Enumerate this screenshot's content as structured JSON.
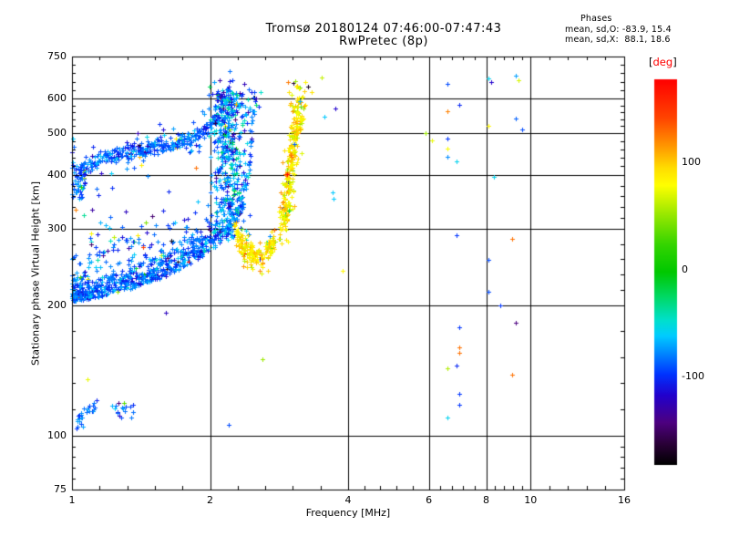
{
  "title": {
    "line1": "Tromsø 20180124 07:46:00-07:47:43",
    "line2": "RwPretec (8p)"
  },
  "annotation": {
    "header": "Phases",
    "line_o": "mean, sd,O: -83.9, 15.4",
    "line_x": "mean, sd,X:  88.1, 18.6"
  },
  "chart_data": {
    "type": "scatter",
    "title": "Tromsø 20180124 07:46:00-07:47:43",
    "subtitle": "RwPretec (8p)",
    "xlabel": "Frequency [MHz]",
    "ylabel": "Stationary phase Virtual Height [km]",
    "x_scale": "log",
    "y_scale": "log",
    "xlim": [
      1,
      16
    ],
    "ylim": [
      75,
      750
    ],
    "x_ticks": [
      1,
      2,
      4,
      6,
      8,
      10,
      16
    ],
    "y_ticks": [
      75,
      100,
      200,
      300,
      400,
      500,
      600,
      750
    ],
    "x_gridlines": [
      2,
      4,
      6,
      8,
      10
    ],
    "y_gridlines": [
      100,
      200,
      300,
      400,
      500,
      600
    ],
    "minor_ticks_per_interval": 4,
    "frame_color": "#000000",
    "phase_stats": {
      "O": {
        "mean": -83.9,
        "sd": 15.4
      },
      "X": {
        "mean": 88.1,
        "sd": 18.6
      }
    },
    "colorbar": {
      "bracket_l": "[",
      "unit": "deg",
      "bracket_r": "]",
      "unit_color": "#ff0000",
      "range": [
        -180,
        180
      ],
      "ticks": [
        100,
        0,
        -100
      ],
      "stops": [
        [
          0.0,
          "#ff0000"
        ],
        [
          0.1,
          "#ff4400"
        ],
        [
          0.175,
          "#ff9900"
        ],
        [
          0.23,
          "#ffdd00"
        ],
        [
          0.275,
          "#ffff00"
        ],
        [
          0.35,
          "#99e800"
        ],
        [
          0.43,
          "#33d400"
        ],
        [
          0.5,
          "#00c800"
        ],
        [
          0.565,
          "#00d966"
        ],
        [
          0.625,
          "#00e0cc"
        ],
        [
          0.665,
          "#00ccff"
        ],
        [
          0.71,
          "#0088ff"
        ],
        [
          0.765,
          "#0033ff"
        ],
        [
          0.82,
          "#2200cc"
        ],
        [
          0.89,
          "#4d0080"
        ],
        [
          0.945,
          "#2a0038"
        ],
        [
          1.0,
          "#000000"
        ]
      ]
    },
    "traces": [
      {
        "name": "o-lower-cloud",
        "kind": "cloud",
        "anchors": [
          [
            1.0,
            204
          ],
          [
            1.1,
            207
          ],
          [
            1.2,
            211
          ],
          [
            1.3,
            216
          ],
          [
            1.4,
            221
          ],
          [
            1.5,
            227
          ],
          [
            1.6,
            233
          ],
          [
            1.7,
            240
          ],
          [
            1.8,
            248
          ],
          [
            1.9,
            257
          ],
          [
            2.0,
            267
          ],
          [
            2.1,
            278
          ],
          [
            2.2,
            292
          ],
          [
            2.3,
            312
          ],
          [
            2.36,
            335
          ],
          [
            2.41,
            370
          ],
          [
            2.44,
            415
          ],
          [
            2.46,
            460
          ],
          [
            2.48,
            510
          ],
          [
            2.5,
            550
          ]
        ],
        "n": 820,
        "spread": 22,
        "bias": 1.25,
        "halo_frac": 0.13,
        "halo": 55,
        "phase_mean": -84,
        "phase_sd": 15,
        "outlier_frac": 0.03
      },
      {
        "name": "o-upper-arc",
        "kind": "curve",
        "anchors": [
          [
            1.0,
            400
          ],
          [
            1.05,
            415
          ],
          [
            1.1,
            428
          ],
          [
            1.2,
            440
          ],
          [
            1.3,
            450
          ],
          [
            1.45,
            460
          ],
          [
            1.6,
            470
          ],
          [
            1.75,
            482
          ],
          [
            1.9,
            498
          ],
          [
            2.0,
            515
          ],
          [
            2.07,
            540
          ],
          [
            2.12,
            570
          ],
          [
            2.17,
            605
          ],
          [
            2.22,
            640
          ]
        ],
        "n": 400,
        "spread": 11,
        "bias": 0.95,
        "halo_frac": 0.1,
        "halo": 30,
        "phase_mean": -84,
        "phase_sd": 15,
        "outlier_frac": 0.04
      },
      {
        "name": "left-edge-blob",
        "kind": "blob",
        "f_min": 1.0,
        "f_max": 1.07,
        "h_min": 352,
        "h_max": 420,
        "n": 40,
        "phase_mean": -80,
        "phase_sd": 18,
        "outlier_frac": 0.05
      },
      {
        "name": "mid-scatter",
        "kind": "band",
        "f_min": 1.05,
        "f_max": 2.0,
        "h_center": 300,
        "h_sd": 45,
        "h_min": 255,
        "h_max": 430,
        "n": 48,
        "phase_mean": -88,
        "phase_sd": 28,
        "outlier_frac": 0.08
      },
      {
        "name": "f-blue-column",
        "kind": "column",
        "f_center": 2.2,
        "f_sd": 0.1,
        "f_min": 2.0,
        "f_max": 2.46,
        "h_min": 282,
        "h_max": 618,
        "h_bias": 0.92,
        "n": 430,
        "phase_mean": -75,
        "phase_sd": 27,
        "outlier_frac": 0.05
      },
      {
        "name": "top-scatter",
        "kind": "blob",
        "f_min": 1.95,
        "f_max": 2.62,
        "h_min": 562,
        "h_max": 662,
        "n": 32,
        "phase_mean": -92,
        "phase_sd": 34,
        "outlier_frac": 0.12
      },
      {
        "name": "x-cusp",
        "kind": "curve",
        "anchors": [
          [
            2.26,
            298
          ],
          [
            2.32,
            280
          ],
          [
            2.4,
            268
          ],
          [
            2.5,
            260
          ],
          [
            2.6,
            262
          ],
          [
            2.7,
            270
          ],
          [
            2.78,
            283
          ]
        ],
        "n": 175,
        "spread": 9,
        "bias": 1.0,
        "halo_frac": 0.07,
        "halo": 22,
        "phase_mean": 92,
        "phase_sd": 14,
        "outlier_frac": 0.07
      },
      {
        "name": "x-column",
        "kind": "curve",
        "anchors": [
          [
            2.86,
            300
          ],
          [
            2.9,
            325
          ],
          [
            2.94,
            355
          ],
          [
            2.98,
            395
          ],
          [
            3.02,
            440
          ],
          [
            3.06,
            490
          ],
          [
            3.1,
            535
          ],
          [
            3.14,
            572
          ]
        ],
        "n": 270,
        "spread": 17,
        "bias": 1.0,
        "halo_frac": 0.06,
        "halo": 35,
        "f_jitter": 0.04,
        "phase_mean": 88,
        "phase_sd": 17,
        "outlier_frac": 0.06
      },
      {
        "name": "x-upper-sparse",
        "kind": "blob",
        "f_min": 2.95,
        "f_max": 3.35,
        "h_min": 555,
        "h_max": 660,
        "n": 26,
        "phase_mean": 85,
        "phase_sd": 25,
        "outlier_frac": 0.1
      },
      {
        "name": "es-streak",
        "kind": "curve",
        "anchors": [
          [
            1.02,
            107
          ],
          [
            1.05,
            110
          ],
          [
            1.09,
            114
          ],
          [
            1.13,
            119
          ]
        ],
        "n": 30,
        "spread": 2.5,
        "bias": 1.0,
        "halo_frac": 0,
        "halo": 0,
        "phase_mean": -84,
        "phase_sd": 12,
        "outlier_frac": 0
      },
      {
        "name": "es-group",
        "kind": "blob",
        "f_min": 1.2,
        "f_max": 1.37,
        "h_min": 110,
        "h_max": 119,
        "n": 16,
        "phase_mean": -86,
        "phase_sd": 14,
        "outlier_frac": 0.06
      }
    ],
    "isolated_points": [
      [
        1.08,
        135,
        75
      ],
      [
        2.2,
        106,
        -90
      ],
      [
        2.6,
        150,
        55
      ],
      [
        1.6,
        192,
        -120
      ],
      [
        1.26,
        119,
        -140
      ],
      [
        1.02,
        332,
        125
      ],
      [
        1.1,
        293,
        85
      ],
      [
        1.39,
        290,
        90
      ],
      [
        1.43,
        272,
        150
      ],
      [
        1.35,
        240,
        -60
      ],
      [
        3.5,
        672,
        65
      ],
      [
        2.24,
        660,
        -95
      ],
      [
        3.75,
        570,
        -115
      ],
      [
        3.55,
        545,
        -60
      ],
      [
        3.7,
        365,
        -60
      ],
      [
        3.72,
        352,
        -60
      ],
      [
        3.9,
        240,
        85
      ],
      [
        1.005,
        485,
        -60
      ],
      [
        1.01,
        465,
        -85
      ],
      [
        5.9,
        500,
        55
      ],
      [
        6.1,
        480,
        75
      ],
      [
        6.6,
        650,
        -90
      ],
      [
        8.1,
        668,
        -55
      ],
      [
        8.2,
        655,
        -115
      ],
      [
        9.3,
        678,
        -70
      ],
      [
        9.4,
        660,
        70
      ],
      [
        7.0,
        580,
        -100
      ],
      [
        6.6,
        560,
        125
      ],
      [
        9.3,
        540,
        -85
      ],
      [
        8.1,
        520,
        85
      ],
      [
        9.6,
        510,
        -90
      ],
      [
        6.6,
        485,
        -95
      ],
      [
        6.6,
        460,
        80
      ],
      [
        6.6,
        440,
        -75
      ],
      [
        6.9,
        430,
        -55
      ],
      [
        8.3,
        395,
        -55
      ],
      [
        6.9,
        290,
        -95
      ],
      [
        9.1,
        285,
        130
      ],
      [
        8.1,
        255,
        -90
      ],
      [
        8.1,
        215,
        -90
      ],
      [
        8.6,
        200,
        -95
      ],
      [
        9.3,
        182,
        -140
      ],
      [
        7.0,
        178,
        -95
      ],
      [
        7.0,
        160,
        130
      ],
      [
        7.0,
        155,
        130
      ],
      [
        6.6,
        143,
        60
      ],
      [
        6.9,
        145,
        -100
      ],
      [
        9.1,
        138,
        130
      ],
      [
        7.0,
        125,
        -95
      ],
      [
        7.0,
        118,
        -95
      ],
      [
        6.6,
        110,
        -55
      ]
    ]
  }
}
